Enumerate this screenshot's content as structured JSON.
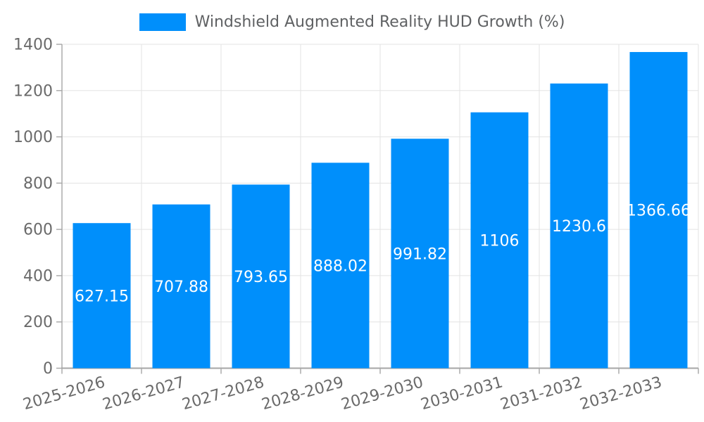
{
  "chart_data": {
    "type": "bar",
    "title": "",
    "categories": [
      "2025-2026",
      "2026-2027",
      "2027-2028",
      "2028-2029",
      "2029-2030",
      "2030-2031",
      "2031-2032",
      "2032-2033"
    ],
    "series": [
      {
        "name": "Windshield Augmented Reality HUD Growth (%)",
        "values": [
          627.15,
          707.88,
          793.65,
          888.02,
          991.82,
          1106,
          1230.6,
          1366.66
        ]
      }
    ],
    "xlabel": "",
    "ylabel": "",
    "ylim": [
      0,
      1400
    ],
    "ytick_step": 200,
    "yticks": [
      0,
      200,
      400,
      600,
      800,
      1000,
      1200,
      1400
    ],
    "grid": true,
    "legend_position": "top-center",
    "x_label_rotation_deg": -16,
    "colors": {
      "bar": "#008FFB",
      "bar_value_label": "#ffffff",
      "axis_text": "#6a6a6a",
      "legend_text": "#5f6163",
      "grid_line": "#e3e3e3",
      "axis_line": "#a6a6a6"
    }
  }
}
